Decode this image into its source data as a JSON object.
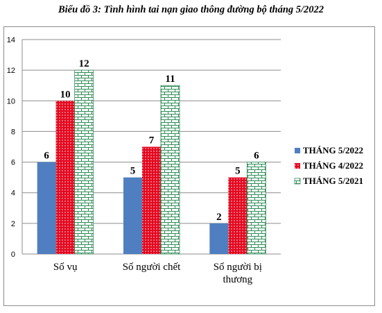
{
  "chart_data": {
    "type": "bar",
    "title": "Biểu đồ 3: Tình hình tai nạn giao thông đường bộ tháng 5/2022",
    "categories": [
      [
        "Số vụ"
      ],
      [
        "Số người chết"
      ],
      [
        "Số người bị",
        "thương"
      ]
    ],
    "series": [
      {
        "name": "THÁNG 5/2022",
        "values": [
          6,
          5,
          2
        ],
        "color": "#4f7fc0",
        "pattern": "solid"
      },
      {
        "name": "THÁNG 4/2022",
        "values": [
          10,
          7,
          5
        ],
        "color": "#e3081f",
        "pattern": "dots"
      },
      {
        "name": "THÁNG 5/2021",
        "values": [
          12,
          11,
          6
        ],
        "color": "#2e8b57",
        "pattern": "bricks"
      }
    ],
    "yticks": [
      0,
      2,
      4,
      6,
      8,
      10,
      12,
      14
    ],
    "ylim": [
      0,
      14
    ],
    "grid": true,
    "legend": "right"
  }
}
